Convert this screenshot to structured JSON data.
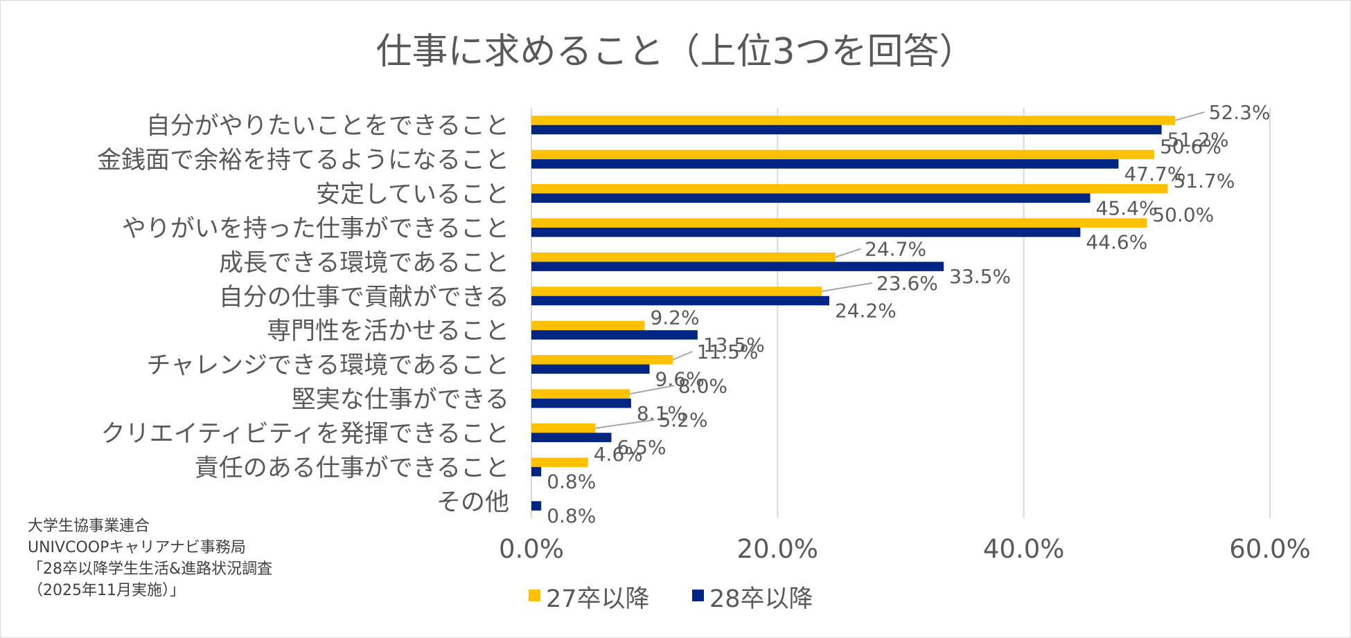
{
  "chart_data": {
    "type": "bar",
    "orientation": "horizontal",
    "title": "仕事に求めること（上位3つを回答）",
    "categories": [
      "自分がやりたいことをできること",
      "金銭面で余裕を持てるようになること",
      "安定していること",
      "やりがいを持った仕事ができること",
      "成長できる環境であること",
      "自分の仕事で貢献ができる",
      "専門性を活かせること",
      "チャレンジできる環境であること",
      "堅実な仕事ができる",
      "クリエイティビティを発揮できること",
      "責任のある仕事ができること",
      "その他"
    ],
    "series": [
      {
        "name": "27卒以降",
        "color": "#FFC000",
        "values": [
          52.3,
          50.6,
          51.7,
          50.0,
          24.7,
          23.6,
          9.2,
          11.5,
          8.0,
          5.2,
          4.6,
          null
        ],
        "labels": [
          "52.3%",
          "50.6%",
          "51.7%",
          "50.0%",
          "24.7%",
          "23.6%",
          "9.2%",
          "11.5%",
          "8.0%",
          "5.2%",
          "4.6%",
          ""
        ]
      },
      {
        "name": "28卒以降",
        "color": "#002582",
        "values": [
          51.2,
          47.7,
          45.4,
          44.6,
          33.5,
          24.2,
          13.5,
          9.6,
          8.1,
          6.5,
          0.8,
          0.8
        ],
        "labels": [
          "51.2%",
          "47.7%",
          "45.4%",
          "44.6%",
          "33.5%",
          "24.2%",
          "13.5%",
          "9.6%",
          "8.1%",
          "6.5%",
          "0.8%",
          "0.8%"
        ]
      }
    ],
    "xlim": [
      0,
      60
    ],
    "xticks": [
      0,
      20,
      40,
      60
    ],
    "xtick_labels": [
      "0.0%",
      "20.0%",
      "40.0%",
      "60.0%"
    ],
    "grid": true,
    "legend": "bottom-center",
    "xlabel": "",
    "ylabel": ""
  },
  "source_note": [
    "大学生協事業連合",
    "UNIVCOOPキャリアナビ事務局",
    "「28卒以降学生生活&進路状況調査",
    "（2025年11月実施）」"
  ],
  "colors": {
    "grid": "#d9d9d9",
    "text": "#595959",
    "leader": "#a6a6a6"
  }
}
